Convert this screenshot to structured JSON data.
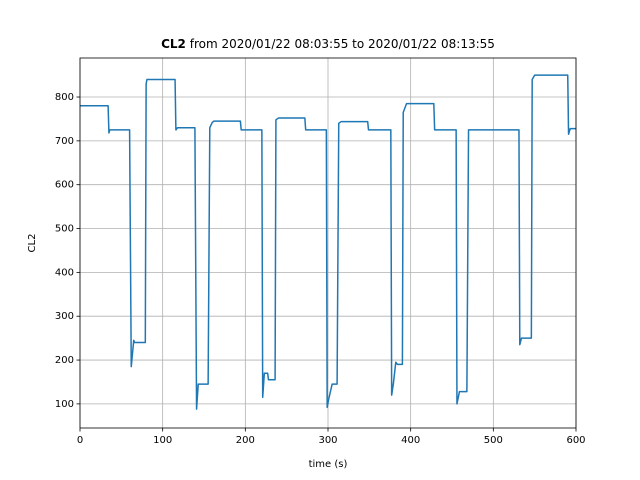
{
  "chart_data": {
    "type": "line",
    "title_bold": "CL2",
    "title": "from 2020/01/22 08:03:55 to 2020/01/22 08:13:55",
    "x_label": "time (s)",
    "y_label": "CL2",
    "x": [
      0,
      34,
      35,
      36,
      60,
      62,
      63,
      65,
      66,
      79,
      80,
      81,
      115,
      116,
      118,
      139,
      141,
      143,
      155,
      157,
      160,
      162,
      194,
      195,
      220,
      221,
      223,
      227,
      228,
      236,
      237,
      240,
      272,
      273,
      298,
      299,
      301,
      305,
      311,
      313,
      316,
      348,
      349,
      376,
      377,
      379,
      382,
      384,
      390,
      391,
      395,
      428,
      429,
      455,
      456,
      459,
      468,
      470,
      531,
      532,
      534,
      546,
      547,
      550,
      590,
      591,
      593,
      600
    ],
    "series": [
      {
        "name": "CL2",
        "color": "#1f77b4",
        "values": [
          780,
          780,
          718,
          725,
          725,
          185,
          205,
          245,
          240,
          240,
          830,
          840,
          840,
          725,
          730,
          730,
          88,
          145,
          145,
          730,
          742,
          745,
          745,
          725,
          725,
          115,
          170,
          170,
          155,
          155,
          748,
          752,
          752,
          725,
          725,
          92,
          112,
          145,
          145,
          740,
          744,
          744,
          725,
          725,
          120,
          145,
          195,
          190,
          190,
          765,
          785,
          785,
          725,
          725,
          100,
          128,
          128,
          725,
          725,
          235,
          250,
          250,
          840,
          850,
          850,
          715,
          728,
          728
        ]
      }
    ],
    "xlim": [
      0,
      600
    ],
    "xticks": [
      0,
      100,
      200,
      300,
      400,
      500,
      600
    ],
    "ylim": [
      45,
      889
    ],
    "yticks": [
      100,
      200,
      300,
      400,
      500,
      600,
      700,
      800
    ],
    "grid": true
  }
}
